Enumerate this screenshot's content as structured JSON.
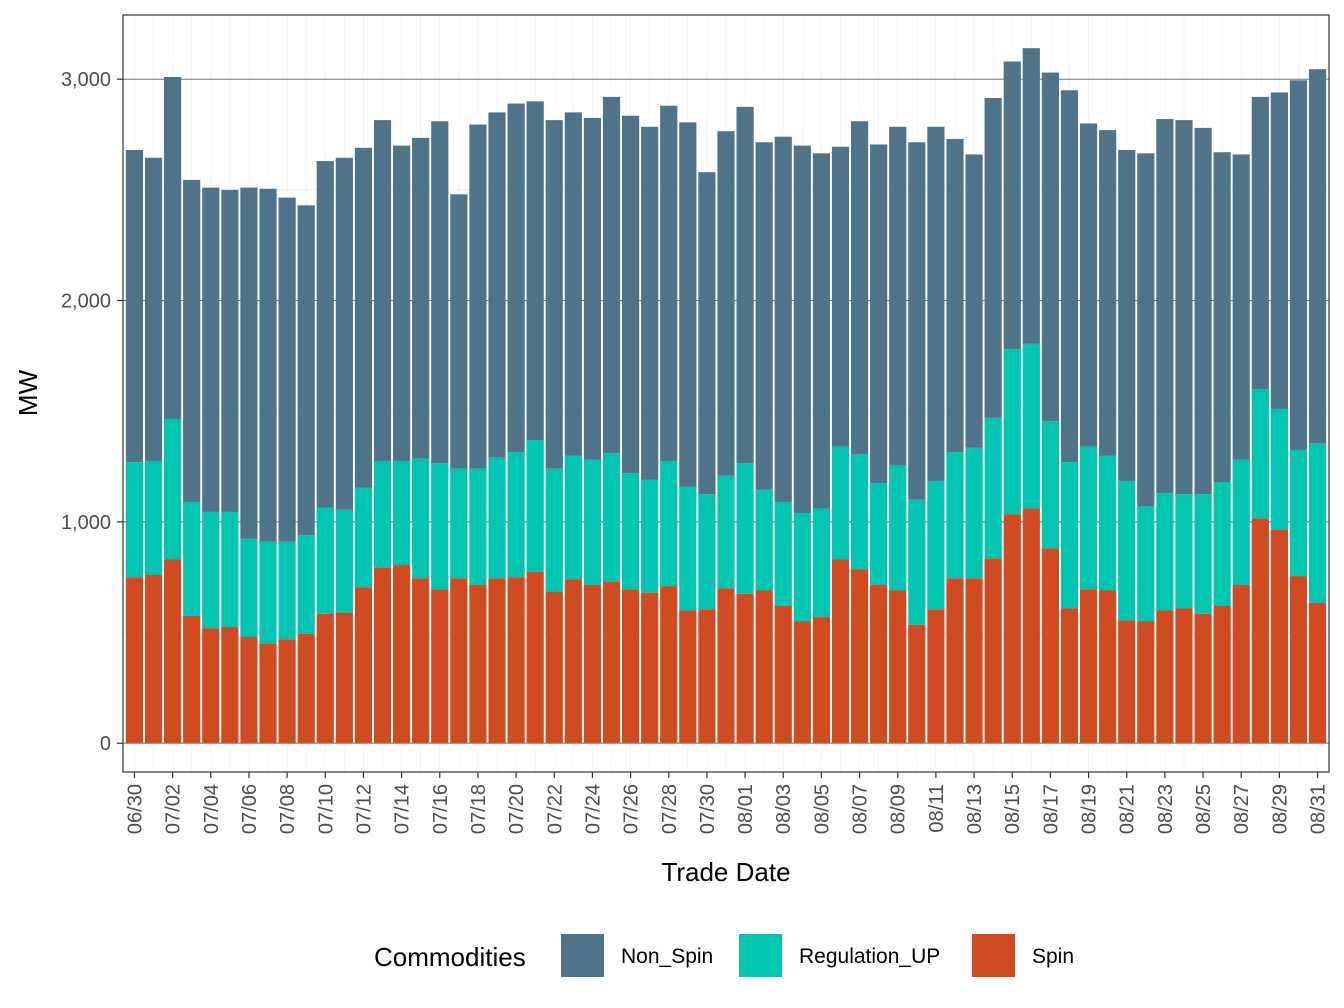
{
  "chart_data": {
    "type": "bar",
    "stacked": true,
    "title": "",
    "xlabel": "Trade Date",
    "ylabel": "MW",
    "ylim": [
      -130,
      3290
    ],
    "y_ticks": [
      0,
      1000,
      2000,
      3000
    ],
    "y_tick_labels": [
      "0",
      "1,000",
      "2,000",
      "3,000"
    ],
    "y_minor_ticks": [
      500,
      1500,
      2500
    ],
    "x_tick_labels": [
      "06/30",
      "07/02",
      "07/04",
      "07/06",
      "07/08",
      "07/10",
      "07/12",
      "07/14",
      "07/16",
      "07/18",
      "07/20",
      "07/22",
      "07/24",
      "07/26",
      "07/28",
      "07/30",
      "08/01",
      "08/03",
      "08/05",
      "08/07",
      "08/09",
      "08/11",
      "08/13",
      "08/15",
      "08/17",
      "08/19",
      "08/21",
      "08/23",
      "08/25",
      "08/27",
      "08/29",
      "08/31"
    ],
    "categories": [
      "06/30",
      "07/01",
      "07/02",
      "07/03",
      "07/04",
      "07/05",
      "07/06",
      "07/07",
      "07/08",
      "07/09",
      "07/10",
      "07/11",
      "07/12",
      "07/13",
      "07/14",
      "07/15",
      "07/16",
      "07/17",
      "07/18",
      "07/19",
      "07/20",
      "07/21",
      "07/22",
      "07/23",
      "07/24",
      "07/25",
      "07/26",
      "07/27",
      "07/28",
      "07/29",
      "07/30",
      "07/31",
      "08/01",
      "08/02",
      "08/03",
      "08/04",
      "08/05",
      "08/06",
      "08/07",
      "08/08",
      "08/09",
      "08/10",
      "08/11",
      "08/12",
      "08/13",
      "08/14",
      "08/15",
      "08/16",
      "08/17",
      "08/18",
      "08/19",
      "08/20",
      "08/21",
      "08/22",
      "08/23",
      "08/24",
      "08/25",
      "08/26",
      "08/27",
      "08/28",
      "08/29",
      "08/30",
      "08/31"
    ],
    "series": [
      {
        "name": "Spin",
        "color": "#d04a22",
        "values": [
          750,
          760,
          830,
          575,
          520,
          525,
          480,
          450,
          470,
          495,
          585,
          590,
          705,
          795,
          805,
          745,
          695,
          745,
          715,
          745,
          750,
          775,
          685,
          740,
          715,
          730,
          695,
          680,
          710,
          600,
          605,
          700,
          675,
          690,
          620,
          550,
          570,
          830,
          785,
          715,
          690,
          535,
          605,
          745,
          745,
          835,
          1035,
          1060,
          880,
          610,
          695,
          690,
          555,
          550,
          600,
          610,
          585,
          620,
          715,
          1015,
          965,
          755,
          635
        ]
      },
      {
        "name": "Regulation_UP",
        "color": "#00c5b0",
        "values": [
          520,
          515,
          635,
          515,
          525,
          520,
          445,
          460,
          440,
          445,
          480,
          465,
          450,
          480,
          470,
          540,
          570,
          495,
          525,
          545,
          565,
          595,
          555,
          560,
          565,
          580,
          525,
          510,
          565,
          560,
          520,
          510,
          590,
          455,
          470,
          490,
          490,
          510,
          520,
          460,
          565,
          565,
          580,
          570,
          590,
          635,
          745,
          745,
          575,
          660,
          645,
          610,
          630,
          520,
          530,
          515,
          540,
          560,
          565,
          585,
          545,
          570,
          720
        ]
      },
      {
        "name": "Non_Spin",
        "color": "#4f7389",
        "values": [
          1410,
          1370,
          1545,
          1455,
          1465,
          1455,
          1585,
          1595,
          1555,
          1490,
          1565,
          1590,
          1535,
          1540,
          1425,
          1450,
          1545,
          1240,
          1555,
          1560,
          1575,
          1530,
          1575,
          1550,
          1545,
          1610,
          1615,
          1595,
          1605,
          1645,
          1455,
          1555,
          1610,
          1570,
          1650,
          1660,
          1605,
          1355,
          1505,
          1530,
          1530,
          1615,
          1600,
          1415,
          1325,
          1445,
          1300,
          1335,
          1575,
          1680,
          1460,
          1470,
          1495,
          1595,
          1690,
          1690,
          1655,
          1490,
          1380,
          1320,
          1430,
          1670,
          1690
        ]
      }
    ],
    "legend": {
      "title": "Commodities",
      "position": "bottom",
      "order": [
        "Non_Spin",
        "Regulation_UP",
        "Spin"
      ]
    },
    "grid": true
  }
}
